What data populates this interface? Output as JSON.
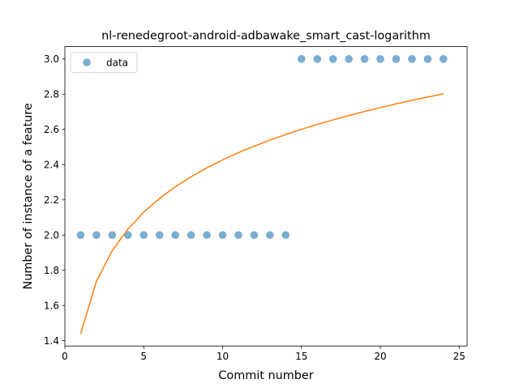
{
  "chart_data": {
    "type": "scatter",
    "title": "nl-renedegroot-android-adbawake_smart_cast-logarithm",
    "xlabel": "Commit number",
    "ylabel": "Number of instance of a feature",
    "xlim": [
      0,
      25.5
    ],
    "ylim": [
      1.37,
      3.07
    ],
    "x_ticks": [
      0,
      5,
      10,
      15,
      20,
      25
    ],
    "y_ticks": [
      1.4,
      1.6,
      1.8,
      2.0,
      2.2,
      2.4,
      2.6,
      2.8,
      3.0
    ],
    "grid": false,
    "legend_position": "top-left",
    "series": [
      {
        "name": "data",
        "type": "scatter",
        "color": "#1f77b4",
        "x": [
          1,
          2,
          3,
          4,
          5,
          6,
          7,
          8,
          9,
          10,
          11,
          12,
          13,
          14,
          15,
          16,
          17,
          18,
          19,
          20,
          21,
          22,
          23,
          24
        ],
        "y": [
          2,
          2,
          2,
          2,
          2,
          2,
          2,
          2,
          2,
          2,
          2,
          2,
          2,
          2,
          3,
          3,
          3,
          3,
          3,
          3,
          3,
          3,
          3,
          3
        ]
      },
      {
        "type": "line",
        "color": "#ff7f0e",
        "x": [
          1,
          2,
          3,
          4,
          5,
          6,
          7,
          8,
          9,
          10,
          11,
          12,
          13,
          14,
          15,
          16,
          17,
          18,
          19,
          20,
          21,
          22,
          23,
          24
        ],
        "y": [
          1.44,
          1.737,
          1.911,
          2.034,
          2.13,
          2.208,
          2.274,
          2.331,
          2.382,
          2.427,
          2.468,
          2.505,
          2.539,
          2.571,
          2.601,
          2.628,
          2.654,
          2.679,
          2.702,
          2.724,
          2.745,
          2.765,
          2.784,
          2.802
        ]
      }
    ]
  }
}
